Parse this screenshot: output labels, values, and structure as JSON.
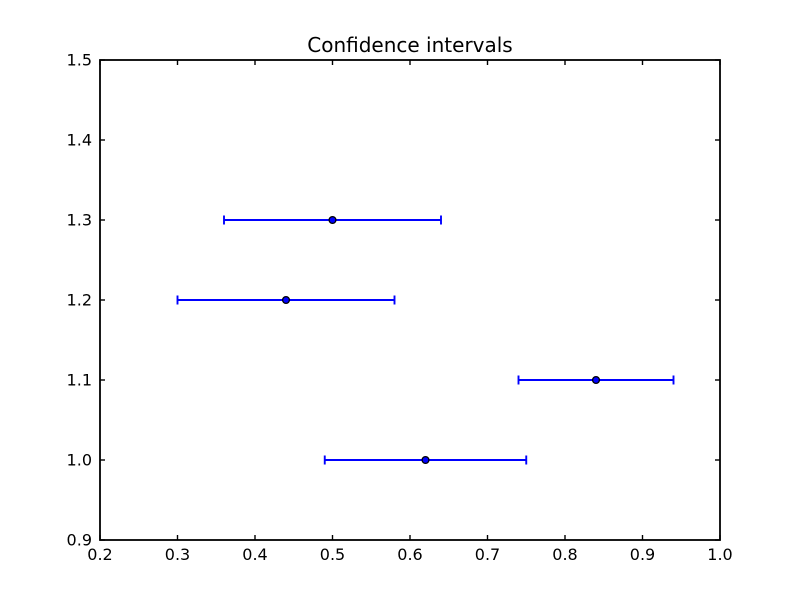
{
  "chart_data": {
    "type": "scatter",
    "subtype": "horizontal-errorbar",
    "title": "Confidence intervals",
    "points": [
      {
        "x": 0.5,
        "y": 1.3,
        "xerr": 0.14
      },
      {
        "x": 0.44,
        "y": 1.2,
        "xerr": 0.14
      },
      {
        "x": 0.84,
        "y": 1.1,
        "xerr": 0.1
      },
      {
        "x": 0.62,
        "y": 1.0,
        "xerr": 0.13
      }
    ],
    "xlim": [
      0.2,
      1.0
    ],
    "ylim": [
      0.9,
      1.5
    ],
    "x_ticks": [
      "0.2",
      "0.3",
      "0.4",
      "0.5",
      "0.6",
      "0.7",
      "0.8",
      "0.9",
      "1.0"
    ],
    "y_ticks": [
      "0.9",
      "1.0",
      "1.1",
      "1.2",
      "1.3",
      "1.4",
      "1.5"
    ],
    "xlabel": "",
    "ylabel": "",
    "grid": false,
    "legend": null,
    "colors": {
      "errorbar_line": "#0000ff",
      "marker_face": "#0000ff",
      "marker_edge": "#000000",
      "axes": "#000000",
      "tick_text": "#000000",
      "background": "#ffffff"
    }
  }
}
